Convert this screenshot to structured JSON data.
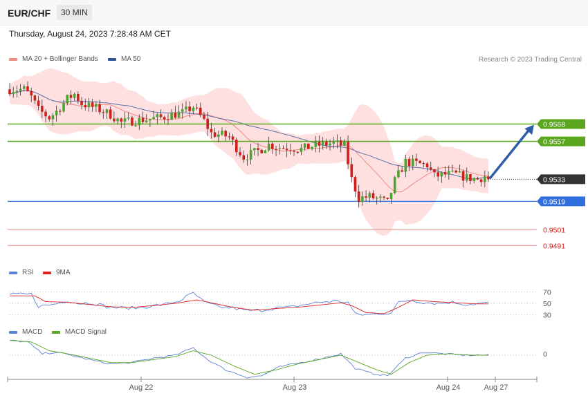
{
  "header": {
    "symbol": "EUR/CHF",
    "timeframe": "30 MIN"
  },
  "datetime": "Thursday, August 24, 2023 7:28:48 AM CET",
  "credit": "Research © 2023 Trading Central",
  "colors": {
    "up": "#4aa52e",
    "down": "#d0201c",
    "ma20": "#f28b82",
    "bb": "#fdd6d6",
    "ma50": "#5a6fa8",
    "green_level": "#5aa61e",
    "blue_level": "#2f6fe0",
    "red_level": "#f4a9a9",
    "last": "#333333",
    "rsi": "#5b82d9",
    "rsi_ma": "#e02020",
    "macd": "#5b82d9",
    "macd_signal": "#5aa61e",
    "arrow": "#2e5fa8"
  },
  "chart_data": [
    {
      "type": "candlestick",
      "title": "",
      "legend": [
        {
          "name": "MA 20 + Bollinger Bands",
          "color": "#f28b82"
        },
        {
          "name": "MA 50",
          "color": "#2f5597"
        }
      ],
      "x_labels": [
        "Aug 22",
        "Aug 23",
        "Aug 24",
        "Aug 27"
      ],
      "ylim": [
        0.9478,
        0.9605
      ],
      "levels": [
        {
          "value": 0.9568,
          "label": "0.9568",
          "kind": "resistance"
        },
        {
          "value": 0.9557,
          "label": "0.9557",
          "kind": "resistance"
        },
        {
          "value": 0.9533,
          "label": "0.9533",
          "kind": "last"
        },
        {
          "value": 0.9519,
          "label": "0.9519",
          "kind": "support"
        },
        {
          "value": 0.9501,
          "label": "0.9501",
          "kind": "support"
        },
        {
          "value": 0.9491,
          "label": "0.9491",
          "kind": "support"
        }
      ],
      "forecast_arrow": {
        "from": 0.9533,
        "to": 0.9568
      },
      "price_anchors": [
        [
          0,
          0.959
        ],
        [
          4,
          0.959
        ],
        [
          6,
          0.9585
        ],
        [
          8,
          0.9577
        ],
        [
          11,
          0.9572
        ],
        [
          13,
          0.9576
        ],
        [
          16,
          0.9584
        ],
        [
          18,
          0.9587
        ],
        [
          20,
          0.9581
        ],
        [
          24,
          0.9578
        ],
        [
          28,
          0.9574
        ],
        [
          31,
          0.9569
        ],
        [
          34,
          0.957
        ],
        [
          38,
          0.9571
        ],
        [
          42,
          0.9572
        ],
        [
          45,
          0.9574
        ],
        [
          48,
          0.9575
        ],
        [
          51,
          0.9579
        ],
        [
          54,
          0.957
        ],
        [
          56,
          0.9562
        ],
        [
          59,
          0.9561
        ],
        [
          61,
          0.956
        ],
        [
          63,
          0.9553
        ],
        [
          65,
          0.9547
        ],
        [
          67,
          0.9549
        ],
        [
          69,
          0.9551
        ],
        [
          72,
          0.9555
        ],
        [
          75,
          0.9553
        ],
        [
          78,
          0.9553
        ],
        [
          81,
          0.9552
        ],
        [
          84,
          0.9554
        ],
        [
          87,
          0.9555
        ],
        [
          90,
          0.9556
        ],
        [
          93,
          0.9554
        ],
        [
          95,
          0.9533
        ],
        [
          97,
          0.9521
        ],
        [
          100,
          0.9522
        ],
        [
          103,
          0.952
        ],
        [
          105,
          0.9518
        ],
        [
          107,
          0.9532
        ],
        [
          110,
          0.9544
        ],
        [
          113,
          0.9543
        ],
        [
          116,
          0.9542
        ],
        [
          118,
          0.9535
        ],
        [
          121,
          0.9536
        ],
        [
          124,
          0.9536
        ],
        [
          127,
          0.9534
        ],
        [
          130,
          0.9533
        ],
        [
          132,
          0.9535
        ],
        [
          133,
          0.9533
        ]
      ]
    },
    {
      "type": "line",
      "series": [
        {
          "name": "RSI",
          "color": "#5b82d9"
        },
        {
          "name": "9MA",
          "color": "#e02020"
        }
      ],
      "ylim": [
        15,
        85
      ],
      "yticks": [
        70,
        50,
        30
      ],
      "rsi_anchors": [
        [
          0,
          65
        ],
        [
          6,
          66
        ],
        [
          8,
          45
        ],
        [
          12,
          48
        ],
        [
          16,
          55
        ],
        [
          19,
          50
        ],
        [
          23,
          51
        ],
        [
          27,
          44
        ],
        [
          31,
          42
        ],
        [
          35,
          42
        ],
        [
          39,
          45
        ],
        [
          43,
          48
        ],
        [
          47,
          54
        ],
        [
          51,
          68
        ],
        [
          54,
          52
        ],
        [
          58,
          44
        ],
        [
          62,
          42
        ],
        [
          66,
          37
        ],
        [
          70,
          38
        ],
        [
          74,
          42
        ],
        [
          78,
          43
        ],
        [
          82,
          48
        ],
        [
          86,
          52
        ],
        [
          90,
          54
        ],
        [
          94,
          52
        ],
        [
          96,
          31
        ],
        [
          99,
          30
        ],
        [
          103,
          32
        ],
        [
          106,
          34
        ],
        [
          108,
          51
        ],
        [
          111,
          56
        ],
        [
          115,
          52
        ],
        [
          119,
          50
        ],
        [
          123,
          52
        ],
        [
          127,
          48
        ],
        [
          131,
          50
        ],
        [
          133,
          50
        ]
      ],
      "rsi_ma_anchors": [
        [
          0,
          63
        ],
        [
          7,
          63
        ],
        [
          10,
          53
        ],
        [
          16,
          52
        ],
        [
          22,
          48
        ],
        [
          28,
          44
        ],
        [
          34,
          43
        ],
        [
          40,
          46
        ],
        [
          46,
          50
        ],
        [
          52,
          56
        ],
        [
          56,
          51
        ],
        [
          62,
          43
        ],
        [
          68,
          38
        ],
        [
          74,
          41
        ],
        [
          80,
          43
        ],
        [
          86,
          47
        ],
        [
          92,
          51
        ],
        [
          95,
          46
        ],
        [
          99,
          34
        ],
        [
          104,
          32
        ],
        [
          108,
          43
        ],
        [
          112,
          56
        ],
        [
          118,
          53
        ],
        [
          124,
          51
        ],
        [
          130,
          49
        ],
        [
          133,
          49
        ]
      ]
    },
    {
      "type": "line",
      "series": [
        {
          "name": "MACD",
          "color": "#5b82d9"
        },
        {
          "name": "MACD Signal",
          "color": "#5aa61e"
        }
      ],
      "yticks": [
        0
      ],
      "zero": 0,
      "macd_anchors": [
        [
          0,
          0.001
        ],
        [
          5,
          0.0009
        ],
        [
          9,
          0.0001
        ],
        [
          13,
          0.0002
        ],
        [
          17,
          0.0
        ],
        [
          22,
          -0.0003
        ],
        [
          28,
          -0.0006
        ],
        [
          34,
          -0.0005
        ],
        [
          40,
          -0.0002
        ],
        [
          46,
          0.0
        ],
        [
          51,
          0.0005
        ],
        [
          55,
          -0.0003
        ],
        [
          60,
          -0.001
        ],
        [
          66,
          -0.0015
        ],
        [
          70,
          -0.0014
        ],
        [
          75,
          -0.0008
        ],
        [
          81,
          -0.0005
        ],
        [
          87,
          -0.0002
        ],
        [
          92,
          0.0001
        ],
        [
          96,
          -0.0009
        ],
        [
          100,
          -0.0012
        ],
        [
          105,
          -0.0014
        ],
        [
          110,
          -0.0002
        ],
        [
          115,
          0.0002
        ],
        [
          120,
          0.0001
        ],
        [
          126,
          0.0
        ],
        [
          133,
          0.0
        ]
      ],
      "signal_anchors": [
        [
          0,
          0.001
        ],
        [
          6,
          0.0009
        ],
        [
          11,
          0.0003
        ],
        [
          16,
          0.0001
        ],
        [
          22,
          -0.0002
        ],
        [
          28,
          -0.0005
        ],
        [
          34,
          -0.0005
        ],
        [
          40,
          -0.0003
        ],
        [
          46,
          -0.0001
        ],
        [
          51,
          0.0003
        ],
        [
          56,
          0.0
        ],
        [
          62,
          -0.0007
        ],
        [
          68,
          -0.0013
        ],
        [
          74,
          -0.001
        ],
        [
          80,
          -0.0006
        ],
        [
          86,
          -0.0003
        ],
        [
          92,
          0.0
        ],
        [
          97,
          -0.0005
        ],
        [
          102,
          -0.001
        ],
        [
          106,
          -0.0013
        ],
        [
          111,
          -0.0005
        ],
        [
          116,
          0.0
        ],
        [
          122,
          0.0001
        ],
        [
          128,
          0.0
        ],
        [
          133,
          0.0
        ]
      ]
    }
  ]
}
